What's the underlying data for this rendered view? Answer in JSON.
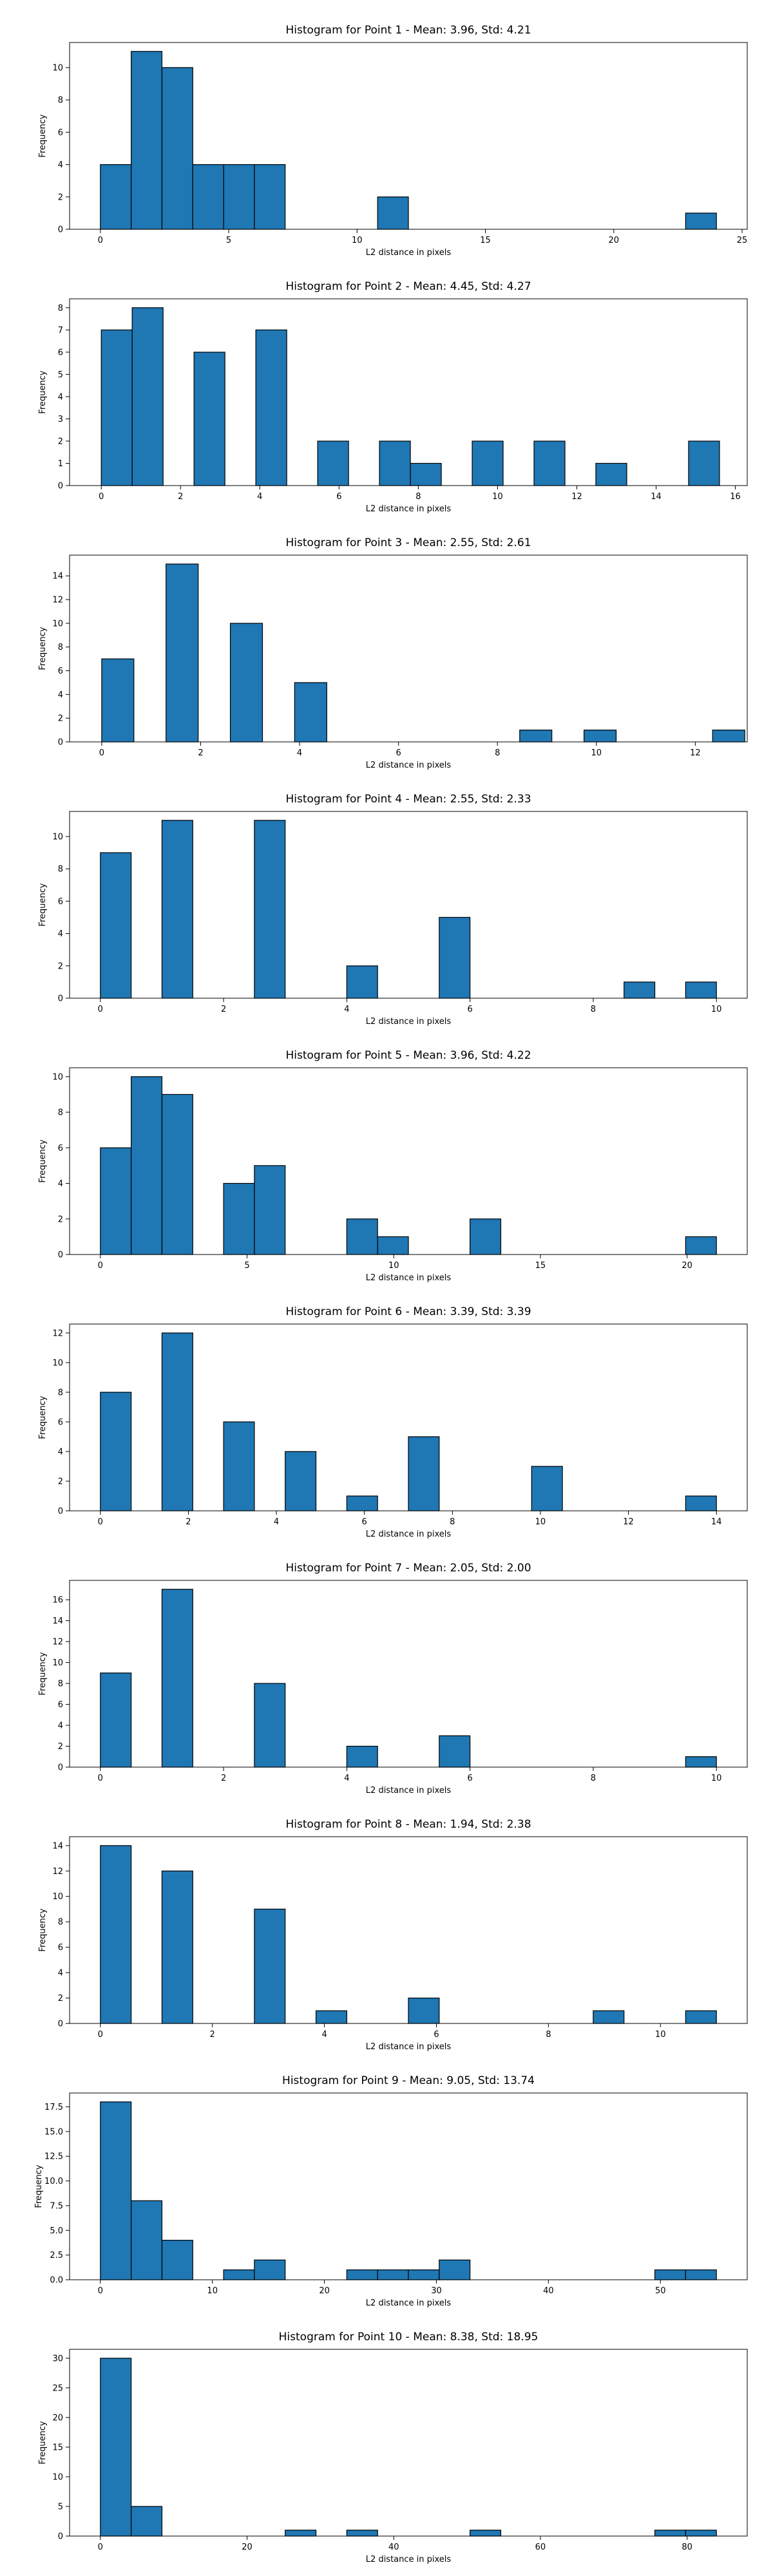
{
  "figure": {
    "bar_color": "#1f77b4",
    "edge_color": "#000000"
  },
  "chart_data": [
    {
      "type": "bar",
      "title": "Histogram for Point 1 - Mean: 3.96, Std: 4.21",
      "xlabel": "L2 distance in pixels",
      "ylabel": "Frequency",
      "xlim": [
        -1.2,
        25.2
      ],
      "ylim": [
        0,
        11.55
      ],
      "xticks": [
        0,
        5,
        10,
        15,
        20,
        25
      ],
      "yticks": [
        0,
        2,
        4,
        6,
        8,
        10
      ],
      "bin_width": 1.2,
      "bins": [
        {
          "x": 0.0,
          "count": 4
        },
        {
          "x": 1.2,
          "count": 11
        },
        {
          "x": 2.4,
          "count": 10
        },
        {
          "x": 3.6,
          "count": 4
        },
        {
          "x": 4.8,
          "count": 4
        },
        {
          "x": 6.0,
          "count": 4
        },
        {
          "x": 10.8,
          "count": 2
        },
        {
          "x": 22.8,
          "count": 1
        }
      ]
    },
    {
      "type": "bar",
      "title": "Histogram for Point 2 - Mean: 4.45, Std: 4.27",
      "xlabel": "L2 distance in pixels",
      "ylabel": "Frequency",
      "xlim": [
        -0.8,
        16.3
      ],
      "ylim": [
        0,
        8.4
      ],
      "xticks": [
        0,
        2,
        4,
        6,
        8,
        10,
        12,
        14,
        16
      ],
      "yticks": [
        0,
        1,
        2,
        3,
        4,
        5,
        6,
        7,
        8
      ],
      "bin_width": 0.78,
      "bins": [
        {
          "x": 0.0,
          "count": 7
        },
        {
          "x": 0.78,
          "count": 8
        },
        {
          "x": 2.34,
          "count": 6
        },
        {
          "x": 3.9,
          "count": 7
        },
        {
          "x": 5.46,
          "count": 2
        },
        {
          "x": 7.02,
          "count": 2
        },
        {
          "x": 7.8,
          "count": 1
        },
        {
          "x": 9.36,
          "count": 2
        },
        {
          "x": 10.92,
          "count": 2
        },
        {
          "x": 12.48,
          "count": 1
        },
        {
          "x": 14.82,
          "count": 2
        }
      ]
    },
    {
      "type": "bar",
      "title": "Histogram for Point 3 - Mean: 2.55, Std: 2.61",
      "xlabel": "L2 distance in pixels",
      "ylabel": "Frequency",
      "xlim": [
        -0.65,
        13.05
      ],
      "ylim": [
        0,
        15.75
      ],
      "xticks": [
        0,
        2,
        4,
        6,
        8,
        10,
        12
      ],
      "yticks": [
        0,
        2,
        4,
        6,
        8,
        10,
        12,
        14
      ],
      "bin_width": 0.65,
      "bins": [
        {
          "x": 0.0,
          "count": 7
        },
        {
          "x": 1.3,
          "count": 15
        },
        {
          "x": 2.6,
          "count": 10
        },
        {
          "x": 3.9,
          "count": 5
        },
        {
          "x": 8.45,
          "count": 1
        },
        {
          "x": 9.75,
          "count": 1
        },
        {
          "x": 12.35,
          "count": 1
        }
      ]
    },
    {
      "type": "bar",
      "title": "Histogram for Point 4 - Mean: 2.55, Std: 2.33",
      "xlabel": "L2 distance in pixels",
      "ylabel": "Frequency",
      "xlim": [
        -0.5,
        10.5
      ],
      "ylim": [
        0,
        11.55
      ],
      "xticks": [
        0,
        2,
        4,
        6,
        8,
        10
      ],
      "yticks": [
        0,
        2,
        4,
        6,
        8,
        10
      ],
      "bin_width": 0.5,
      "bins": [
        {
          "x": 0.0,
          "count": 9
        },
        {
          "x": 1.0,
          "count": 11
        },
        {
          "x": 2.5,
          "count": 11
        },
        {
          "x": 4.0,
          "count": 2
        },
        {
          "x": 5.5,
          "count": 5
        },
        {
          "x": 8.5,
          "count": 1
        },
        {
          "x": 9.5,
          "count": 1
        }
      ]
    },
    {
      "type": "bar",
      "title": "Histogram for Point 5 - Mean: 3.96, Std: 4.22",
      "xlabel": "L2 distance in pixels",
      "ylabel": "Frequency",
      "xlim": [
        -1.05,
        22.05
      ],
      "ylim": [
        0,
        10.5
      ],
      "xticks": [
        0,
        5,
        10,
        15,
        20
      ],
      "yticks": [
        0,
        2,
        4,
        6,
        8,
        10
      ],
      "bin_width": 1.05,
      "bins": [
        {
          "x": 0.0,
          "count": 6
        },
        {
          "x": 1.05,
          "count": 10
        },
        {
          "x": 2.1,
          "count": 9
        },
        {
          "x": 4.2,
          "count": 4
        },
        {
          "x": 5.25,
          "count": 5
        },
        {
          "x": 8.4,
          "count": 2
        },
        {
          "x": 9.45,
          "count": 1
        },
        {
          "x": 12.6,
          "count": 2
        },
        {
          "x": 19.95,
          "count": 1
        }
      ]
    },
    {
      "type": "bar",
      "title": "Histogram for Point 6 - Mean: 3.39, Std: 3.39",
      "xlabel": "L2 distance in pixels",
      "ylabel": "Frequency",
      "xlim": [
        -0.7,
        14.7
      ],
      "ylim": [
        0,
        12.6
      ],
      "xticks": [
        0,
        2,
        4,
        6,
        8,
        10,
        12,
        14
      ],
      "yticks": [
        0,
        2,
        4,
        6,
        8,
        10,
        12
      ],
      "bin_width": 0.7,
      "bins": [
        {
          "x": 0.0,
          "count": 8
        },
        {
          "x": 1.4,
          "count": 12
        },
        {
          "x": 2.8,
          "count": 6
        },
        {
          "x": 4.2,
          "count": 4
        },
        {
          "x": 5.6,
          "count": 1
        },
        {
          "x": 7.0,
          "count": 5
        },
        {
          "x": 9.8,
          "count": 3
        },
        {
          "x": 13.3,
          "count": 1
        }
      ]
    },
    {
      "type": "bar",
      "title": "Histogram for Point 7 - Mean: 2.05, Std: 2.00",
      "xlabel": "L2 distance in pixels",
      "ylabel": "Frequency",
      "xlim": [
        -0.5,
        10.5
      ],
      "ylim": [
        0,
        17.85
      ],
      "xticks": [
        0,
        2,
        4,
        6,
        8,
        10
      ],
      "yticks": [
        0,
        2,
        4,
        6,
        8,
        10,
        12,
        14,
        16
      ],
      "bin_width": 0.5,
      "bins": [
        {
          "x": 0.0,
          "count": 9
        },
        {
          "x": 1.0,
          "count": 17
        },
        {
          "x": 2.5,
          "count": 8
        },
        {
          "x": 4.0,
          "count": 2
        },
        {
          "x": 5.5,
          "count": 3
        },
        {
          "x": 9.5,
          "count": 1
        }
      ]
    },
    {
      "type": "bar",
      "title": "Histogram for Point 8 - Mean: 1.94, Std: 2.38",
      "xlabel": "L2 distance in pixels",
      "ylabel": "Frequency",
      "xlim": [
        -0.55,
        11.55
      ],
      "ylim": [
        0,
        14.7
      ],
      "xticks": [
        0,
        2,
        4,
        6,
        8,
        10
      ],
      "yticks": [
        0,
        2,
        4,
        6,
        8,
        10,
        12,
        14
      ],
      "bin_width": 0.55,
      "bins": [
        {
          "x": 0.0,
          "count": 14
        },
        {
          "x": 1.1,
          "count": 12
        },
        {
          "x": 2.75,
          "count": 9
        },
        {
          "x": 3.85,
          "count": 1
        },
        {
          "x": 5.5,
          "count": 2
        },
        {
          "x": 8.8,
          "count": 1
        },
        {
          "x": 10.45,
          "count": 1
        }
      ]
    },
    {
      "type": "bar",
      "title": "Histogram for Point 9 - Mean: 9.05, Std: 13.74",
      "xlabel": "L2 distance in pixels",
      "ylabel": "Frequency",
      "xlim": [
        -2.75,
        57.75
      ],
      "ylim": [
        0,
        18.9
      ],
      "xticks": [
        0,
        10,
        20,
        30,
        40,
        50
      ],
      "yticks": [
        0.0,
        2.5,
        5.0,
        7.5,
        10.0,
        12.5,
        15.0,
        17.5
      ],
      "ytick_labels": [
        "0.0",
        "2.5",
        "5.0",
        "7.5",
        "10.0",
        "12.5",
        "15.0",
        "17.5"
      ],
      "bin_width": 2.75,
      "bins": [
        {
          "x": 0.0,
          "count": 18
        },
        {
          "x": 2.75,
          "count": 8
        },
        {
          "x": 5.5,
          "count": 4
        },
        {
          "x": 11.0,
          "count": 1
        },
        {
          "x": 13.75,
          "count": 2
        },
        {
          "x": 22.0,
          "count": 1
        },
        {
          "x": 24.75,
          "count": 1
        },
        {
          "x": 27.5,
          "count": 1
        },
        {
          "x": 30.25,
          "count": 2
        },
        {
          "x": 49.5,
          "count": 1
        },
        {
          "x": 52.25,
          "count": 1
        }
      ]
    },
    {
      "type": "bar",
      "title": "Histogram for Point 10 - Mean: 8.38, Std: 18.95",
      "xlabel": "L2 distance in pixels",
      "ylabel": "Frequency",
      "xlim": [
        -4.2,
        88.2
      ],
      "ylim": [
        0,
        31.5
      ],
      "xticks": [
        0,
        20,
        40,
        60,
        80
      ],
      "yticks": [
        0,
        5,
        10,
        15,
        20,
        25,
        30
      ],
      "bin_width": 4.2,
      "bins": [
        {
          "x": 0.0,
          "count": 30
        },
        {
          "x": 4.2,
          "count": 5
        },
        {
          "x": 25.2,
          "count": 1
        },
        {
          "x": 33.6,
          "count": 1
        },
        {
          "x": 50.4,
          "count": 1
        },
        {
          "x": 75.6,
          "count": 1
        },
        {
          "x": 79.8,
          "count": 1
        }
      ]
    }
  ]
}
